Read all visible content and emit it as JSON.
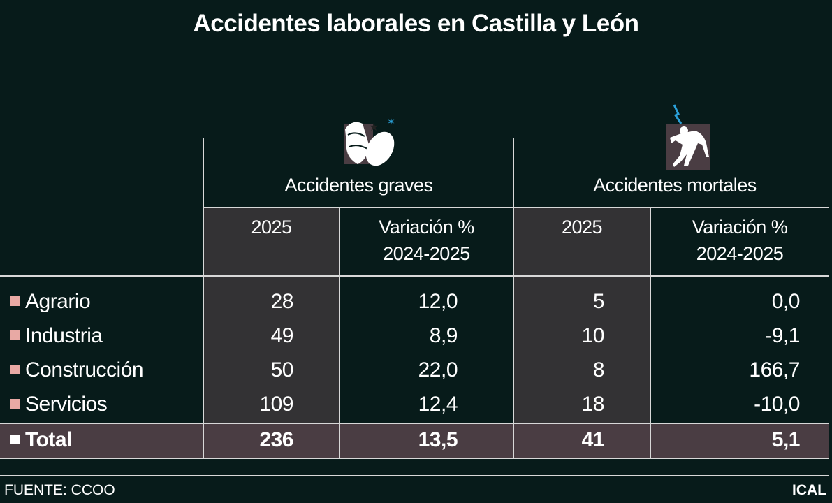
{
  "title": "Accidentes laborales en Castilla y León",
  "colors": {
    "background": "#071b1a",
    "year_column": "#333234",
    "total_row": "#4a3d43",
    "sector_marker": "#e8a9a4",
    "total_marker": "#ffffff",
    "icon_accent": "#2aa0d8"
  },
  "groups": [
    {
      "label": "Accidentes graves",
      "icon": "bandaged-foot-icon"
    },
    {
      "label": "Accidentes mortales",
      "icon": "electrocuted-person-icon"
    }
  ],
  "columns": [
    "2025",
    "Variación %",
    "2024-2025"
  ],
  "chart_data": {
    "type": "table",
    "title": "Accidentes laborales en Castilla y León",
    "column_groups": [
      "Accidentes graves",
      "Accidentes mortales"
    ],
    "columns": [
      "2025",
      "Variación % 2024-2025",
      "2025",
      "Variación % 2024-2025"
    ],
    "rows": [
      {
        "label": "Agrario",
        "values": [
          "28",
          "12,0",
          "5",
          "0,0"
        ]
      },
      {
        "label": "Industria",
        "values": [
          "49",
          "8,9",
          "10",
          "-9,1"
        ]
      },
      {
        "label": "Construcción",
        "values": [
          "50",
          "22,0",
          "8",
          "166,7"
        ]
      },
      {
        "label": "Servicios",
        "values": [
          "109",
          "12,4",
          "18",
          "-10,0"
        ]
      },
      {
        "label": "Total",
        "values": [
          "236",
          "13,5",
          "41",
          "5,1"
        ]
      }
    ]
  },
  "footer": {
    "source": "FUENTE: CCOO",
    "brand": "ICAL"
  }
}
